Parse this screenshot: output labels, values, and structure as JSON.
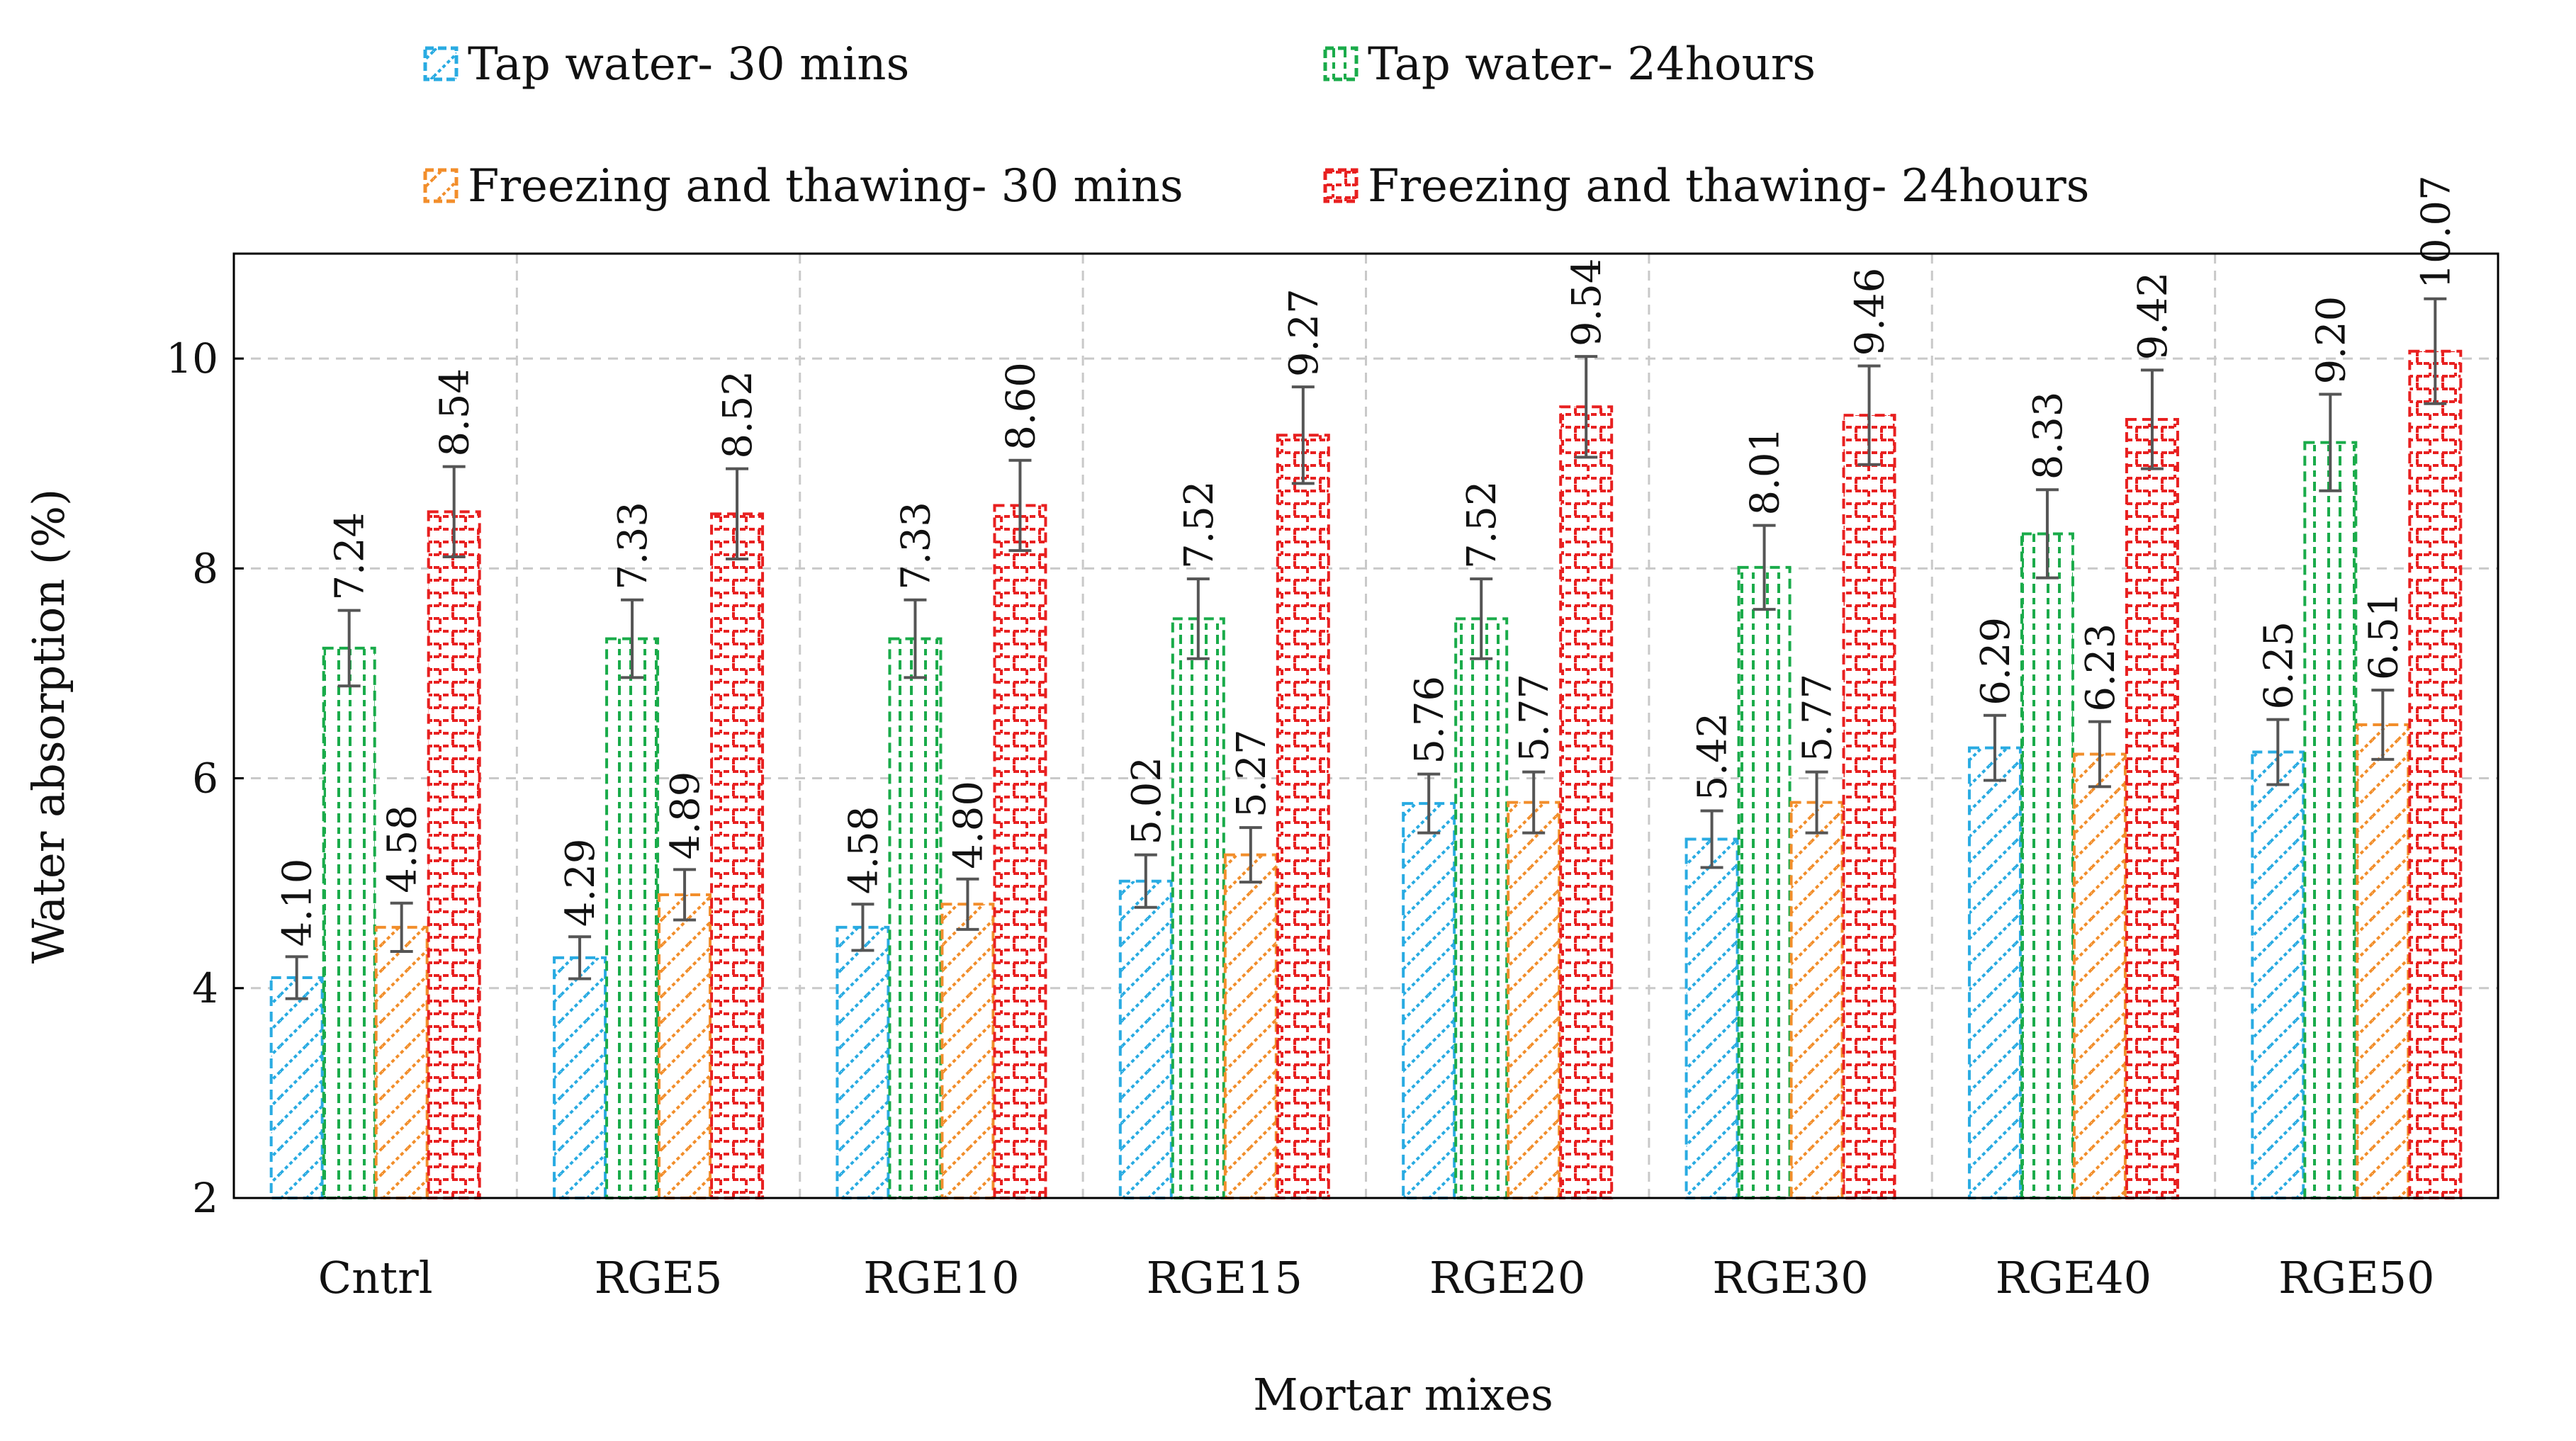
{
  "chart_data": {
    "type": "bar",
    "title": "",
    "xlabel": "Mortar mixes",
    "ylabel": "Water absorption (%)",
    "ylim": [
      2,
      11
    ],
    "yticks": [
      2,
      4,
      6,
      8,
      10
    ],
    "grid": true,
    "legend_position": "top",
    "categories": [
      "Cntrl",
      "RGE5",
      "RGE10",
      "RGE15",
      "RGE20",
      "RGE30",
      "RGE40",
      "RGE50"
    ],
    "series": [
      {
        "name": "Tap water- 30 mins",
        "color": "#29abe2",
        "pattern": "dots",
        "values": [
          4.1,
          4.29,
          4.58,
          5.02,
          5.76,
          5.42,
          6.29,
          6.25
        ],
        "labels": [
          "4.10",
          "4.29",
          "4.58",
          "5.02",
          "5.76",
          "5.42",
          "6.29",
          "6.25"
        ],
        "errors": [
          0.2,
          0.2,
          0.22,
          0.25,
          0.28,
          0.27,
          0.31,
          0.31
        ]
      },
      {
        "name": "Tap water- 24hours",
        "color": "#1aab4a",
        "pattern": "dash",
        "values": [
          7.24,
          7.33,
          7.33,
          7.52,
          7.52,
          8.01,
          8.33,
          9.2
        ],
        "labels": [
          "7.24",
          "7.33",
          "7.33",
          "7.52",
          "7.52",
          "8.01",
          "8.33",
          "9.20"
        ],
        "errors": [
          0.36,
          0.37,
          0.37,
          0.38,
          0.38,
          0.4,
          0.42,
          0.46
        ]
      },
      {
        "name": "Freezing and thawing- 30 mins",
        "color": "#f28e2b",
        "pattern": "dots",
        "values": [
          4.58,
          4.89,
          4.8,
          5.27,
          5.77,
          5.77,
          6.23,
          6.51
        ],
        "labels": [
          "4.58",
          "4.89",
          "4.80",
          "5.27",
          "5.77",
          "5.77",
          "6.23",
          "6.51"
        ],
        "errors": [
          0.23,
          0.24,
          0.24,
          0.26,
          0.29,
          0.29,
          0.31,
          0.33
        ]
      },
      {
        "name": "Freezing and thawing- 24hours",
        "color": "#e82020",
        "pattern": "brick",
        "values": [
          8.54,
          8.52,
          8.6,
          9.27,
          9.54,
          9.46,
          9.42,
          10.07
        ],
        "labels": [
          "8.54",
          "8.52",
          "8.60",
          "9.27",
          "9.54",
          "9.46",
          "9.42",
          "10.07"
        ],
        "errors": [
          0.43,
          0.43,
          0.43,
          0.46,
          0.48,
          0.47,
          0.47,
          0.5
        ]
      }
    ]
  }
}
